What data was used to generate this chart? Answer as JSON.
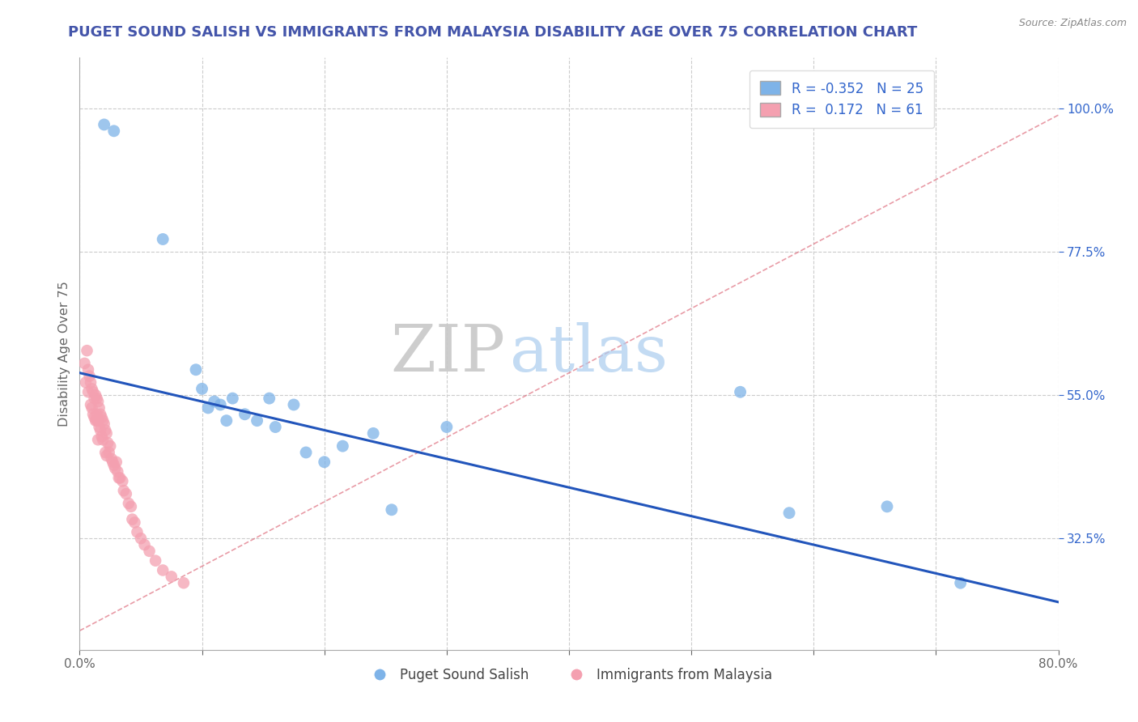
{
  "title": "PUGET SOUND SALISH VS IMMIGRANTS FROM MALAYSIA DISABILITY AGE OVER 75 CORRELATION CHART",
  "source": "Source: ZipAtlas.com",
  "ylabel": "Disability Age Over 75",
  "xlim": [
    0.0,
    0.8
  ],
  "ylim": [
    0.15,
    1.08
  ],
  "xticks": [
    0.0,
    0.1,
    0.2,
    0.3,
    0.4,
    0.5,
    0.6,
    0.7,
    0.8
  ],
  "xticklabels": [
    "0.0%",
    "",
    "",
    "",
    "",
    "",
    "",
    "",
    "80.0%"
  ],
  "ytick_positions": [
    0.325,
    0.55,
    0.775,
    1.0
  ],
  "yticklabels": [
    "32.5%",
    "55.0%",
    "77.5%",
    "100.0%"
  ],
  "blue_R": -0.352,
  "blue_N": 25,
  "pink_R": 0.172,
  "pink_N": 61,
  "blue_color": "#7EB3E8",
  "pink_color": "#F4A0B0",
  "blue_line_color": "#2255BB",
  "pink_line_color": "#DD6677",
  "watermark_zip": "ZIP",
  "watermark_atlas": "atlas",
  "background_color": "#FFFFFF",
  "grid_color": "#CCCCCC",
  "title_color": "#4455AA",
  "axis_label_color": "#666666",
  "blue_points_x": [
    0.02,
    0.028,
    0.068,
    0.095,
    0.1,
    0.105,
    0.11,
    0.115,
    0.12,
    0.125,
    0.135,
    0.145,
    0.155,
    0.16,
    0.175,
    0.185,
    0.2,
    0.215,
    0.24,
    0.255,
    0.3,
    0.54,
    0.58,
    0.66,
    0.72
  ],
  "blue_points_y": [
    0.975,
    0.965,
    0.795,
    0.59,
    0.56,
    0.53,
    0.54,
    0.535,
    0.51,
    0.545,
    0.52,
    0.51,
    0.545,
    0.5,
    0.535,
    0.46,
    0.445,
    0.47,
    0.49,
    0.37,
    0.5,
    0.555,
    0.365,
    0.375,
    0.255
  ],
  "pink_points_x": [
    0.004,
    0.005,
    0.006,
    0.007,
    0.007,
    0.008,
    0.009,
    0.009,
    0.01,
    0.01,
    0.011,
    0.011,
    0.012,
    0.012,
    0.013,
    0.013,
    0.014,
    0.014,
    0.014,
    0.015,
    0.015,
    0.015,
    0.016,
    0.016,
    0.017,
    0.017,
    0.018,
    0.018,
    0.019,
    0.019,
    0.02,
    0.021,
    0.021,
    0.022,
    0.022,
    0.023,
    0.024,
    0.025,
    0.026,
    0.027,
    0.028,
    0.029,
    0.03,
    0.031,
    0.032,
    0.033,
    0.035,
    0.036,
    0.038,
    0.04,
    0.042,
    0.043,
    0.045,
    0.047,
    0.05,
    0.053,
    0.057,
    0.062,
    0.068,
    0.075,
    0.085
  ],
  "pink_points_y": [
    0.6,
    0.57,
    0.62,
    0.59,
    0.555,
    0.58,
    0.57,
    0.535,
    0.56,
    0.53,
    0.555,
    0.52,
    0.545,
    0.515,
    0.55,
    0.51,
    0.545,
    0.52,
    0.51,
    0.54,
    0.51,
    0.48,
    0.53,
    0.5,
    0.52,
    0.495,
    0.515,
    0.485,
    0.51,
    0.48,
    0.505,
    0.495,
    0.46,
    0.49,
    0.455,
    0.475,
    0.46,
    0.47,
    0.45,
    0.445,
    0.44,
    0.435,
    0.445,
    0.43,
    0.42,
    0.42,
    0.415,
    0.4,
    0.395,
    0.38,
    0.375,
    0.355,
    0.35,
    0.335,
    0.325,
    0.315,
    0.305,
    0.29,
    0.275,
    0.265,
    0.255
  ],
  "blue_trend_x": [
    0.0,
    0.8
  ],
  "blue_trend_y": [
    0.585,
    0.225
  ],
  "pink_trend_x": [
    0.0,
    0.8
  ],
  "pink_trend_y": [
    0.18,
    0.99
  ]
}
